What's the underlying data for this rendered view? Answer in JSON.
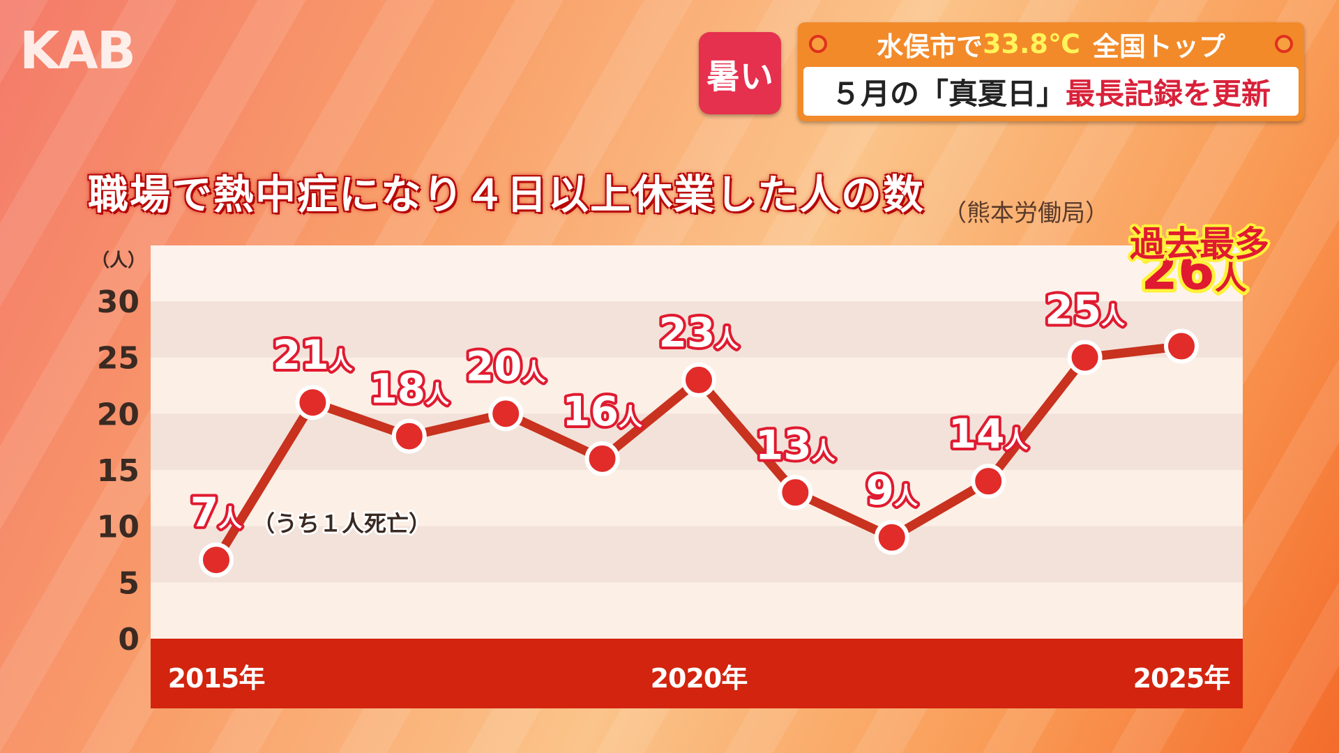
{
  "logo": "KAB",
  "badge": "暑い",
  "headline": {
    "top_pre": "水俣市で",
    "top_temp": "33.8℃",
    "top_post": "全国トップ",
    "bottom_pre": "５月の「真夏日」",
    "bottom_red": "最長記録を更新"
  },
  "title": "職場で熱中症になり４日以上休業した人の数",
  "source": "（熊本労働局）",
  "record_label": "過去最多",
  "note": "（うち１人死亡）",
  "colors": {
    "line": "#c8321e",
    "marker": "#e22c2a",
    "xbar": "#d2240e",
    "label_red": "#e01a30",
    "highlight_yellow": "#fff23a"
  },
  "chart_data": {
    "type": "line",
    "title": "職場で熱中症になり４日以上休業した人の数",
    "ylabel": "（人）",
    "xlabel": "",
    "ylim": [
      0,
      30
    ],
    "yticks": [
      "0",
      "5",
      "10",
      "15",
      "20",
      "25",
      "30"
    ],
    "x": [
      2015,
      2016,
      2017,
      2018,
      2019,
      2020,
      2021,
      2022,
      2023,
      2024,
      2025
    ],
    "xtick_labels": [
      {
        "x": 2015,
        "label": "2015年"
      },
      {
        "x": 2020,
        "label": "2020年"
      },
      {
        "x": 2025,
        "label": "2025年"
      }
    ],
    "values": [
      7,
      21,
      18,
      20,
      16,
      23,
      13,
      9,
      14,
      25,
      26
    ],
    "data_labels": [
      "7人",
      "21人",
      "18人",
      "20人",
      "16人",
      "23人",
      "13人",
      "9人",
      "14人",
      "25人",
      "26人"
    ],
    "grid": true,
    "legend": "none"
  }
}
